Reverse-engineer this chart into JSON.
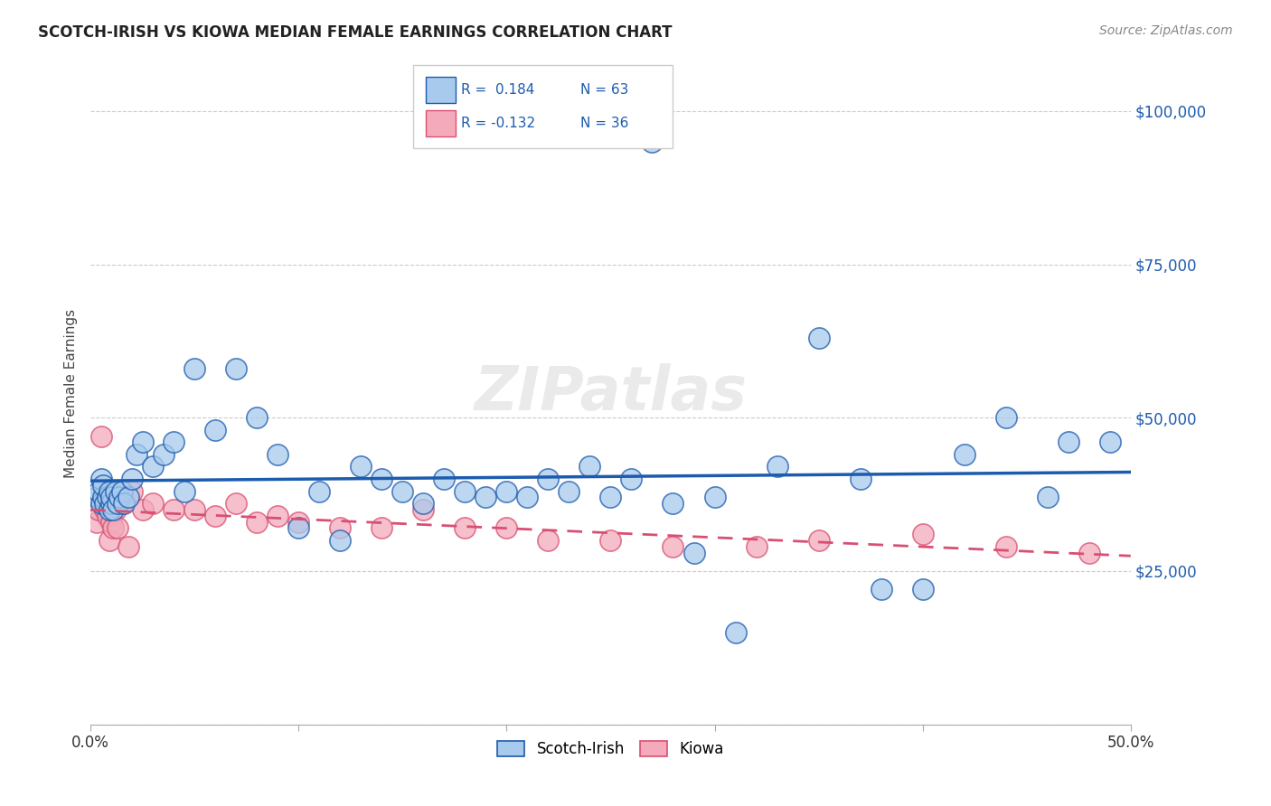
{
  "title": "SCOTCH-IRISH VS KIOWA MEDIAN FEMALE EARNINGS CORRELATION CHART",
  "source": "Source: ZipAtlas.com",
  "ylabel": "Median Female Earnings",
  "yticks": [
    0,
    25000,
    50000,
    75000,
    100000
  ],
  "ytick_labels": [
    "",
    "$25,000",
    "$50,000",
    "$75,000",
    "$100,000"
  ],
  "xlim": [
    0.0,
    50.0
  ],
  "ylim": [
    0,
    108000
  ],
  "legend1_label": "Scotch-Irish",
  "legend2_label": "Kiowa",
  "R1": 0.184,
  "N1": 63,
  "R2": -0.132,
  "N2": 36,
  "blue_color": "#A8CAED",
  "pink_color": "#F4AABB",
  "blue_line_color": "#1C5BAE",
  "pink_line_color": "#D94F72",
  "watermark": "ZIPatlas",
  "scotch_irish_x": [
    0.3,
    0.4,
    0.5,
    0.5,
    0.6,
    0.6,
    0.7,
    0.8,
    0.9,
    0.9,
    1.0,
    1.0,
    1.1,
    1.2,
    1.3,
    1.4,
    1.5,
    1.6,
    1.8,
    2.0,
    2.2,
    2.5,
    3.0,
    3.5,
    4.0,
    4.5,
    5.0,
    6.0,
    7.0,
    8.0,
    9.0,
    10.0,
    11.0,
    12.0,
    13.0,
    14.0,
    15.0,
    16.0,
    17.0,
    18.0,
    19.0,
    20.0,
    21.0,
    22.0,
    23.0,
    24.0,
    25.0,
    26.0,
    27.0,
    28.0,
    29.0,
    30.0,
    31.0,
    33.0,
    35.0,
    37.0,
    38.0,
    40.0,
    42.0,
    44.0,
    46.0,
    47.0,
    49.0
  ],
  "scotch_irish_y": [
    37000,
    38000,
    36000,
    40000,
    37000,
    39000,
    36000,
    37000,
    35000,
    38000,
    36000,
    37000,
    35000,
    38000,
    36000,
    37000,
    38000,
    36000,
    37000,
    40000,
    44000,
    46000,
    42000,
    44000,
    46000,
    38000,
    58000,
    48000,
    58000,
    50000,
    44000,
    32000,
    38000,
    30000,
    42000,
    40000,
    38000,
    36000,
    40000,
    38000,
    37000,
    38000,
    37000,
    40000,
    38000,
    42000,
    37000,
    40000,
    95000,
    36000,
    28000,
    37000,
    15000,
    42000,
    63000,
    40000,
    22000,
    22000,
    44000,
    50000,
    37000,
    46000,
    46000
  ],
  "kiowa_x": [
    0.3,
    0.4,
    0.5,
    0.6,
    0.7,
    0.8,
    0.9,
    1.0,
    1.1,
    1.2,
    1.3,
    1.5,
    1.8,
    2.0,
    2.5,
    3.0,
    4.0,
    5.0,
    6.0,
    7.0,
    8.0,
    9.0,
    10.0,
    12.0,
    14.0,
    16.0,
    18.0,
    20.0,
    22.0,
    25.0,
    28.0,
    32.0,
    35.0,
    40.0,
    44.0,
    48.0
  ],
  "kiowa_y": [
    33000,
    35000,
    47000,
    36000,
    35000,
    34000,
    30000,
    33000,
    32000,
    35000,
    32000,
    36000,
    29000,
    38000,
    35000,
    36000,
    35000,
    35000,
    34000,
    36000,
    33000,
    34000,
    33000,
    32000,
    32000,
    35000,
    32000,
    32000,
    30000,
    30000,
    29000,
    29000,
    30000,
    31000,
    29000,
    28000
  ]
}
